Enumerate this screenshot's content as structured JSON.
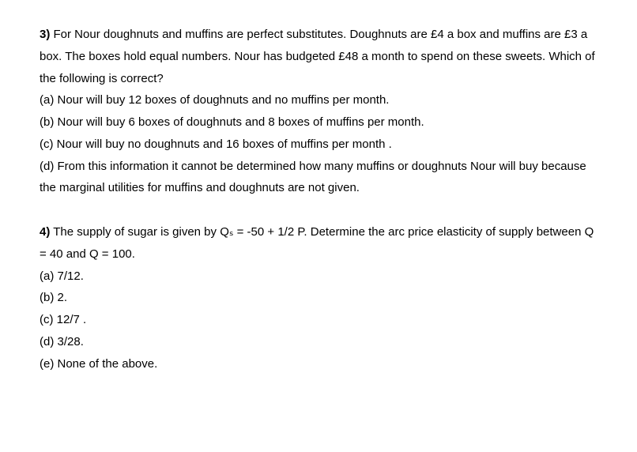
{
  "q3": {
    "number": "3)",
    "stem_part1": "For Nour doughnuts and muffins are perfect substitutes. Doughnuts are £4 a box and muffins are £3 a box. The boxes hold equal numbers. Nour has budgeted £48 a month to spend on these sweets. Which of the following is correct?",
    "options": {
      "a": "(a) Nour will buy 12 boxes of doughnuts and no muffins per month.",
      "b": "(b) Nour will buy 6 boxes of doughnuts and 8 boxes of muffins per month.",
      "c": "(c) Nour will buy no doughnuts and 16 boxes of muffins per month .",
      "d": "(d) From this information it cannot be determined how many muffins or doughnuts Nour will buy because the marginal utilities for muffins and doughnuts are not given."
    }
  },
  "q4": {
    "number": "4)",
    "stem_part1": "The supply of sugar is given by Qₛ = -50 + 1/2 P. Determine the arc price elasticity of supply between Q = 40 and Q = 100.",
    "options": {
      "a": "(a) 7/12.",
      "b": "(b) 2.",
      "c": "(c) 12/7 .",
      "d": "(d) 3/28.",
      "e": "(e) None of the above."
    }
  }
}
